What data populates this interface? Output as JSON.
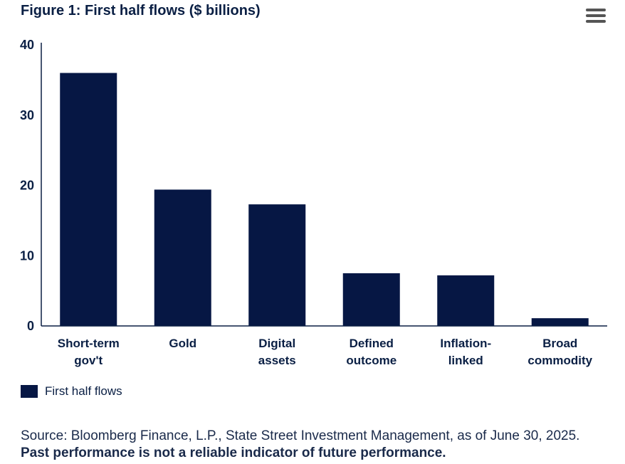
{
  "title": "Figure 1: First half flows ($ billions)",
  "menu_icon": "hamburger-menu-icon",
  "colors": {
    "bar": "#061744",
    "axis": "#0a1f44",
    "text": "#0a1f44"
  },
  "legend": {
    "label": "First half flows"
  },
  "source": {
    "text": "Source: Bloomberg Finance, L.P., State Street Investment Management, as of June 30, 2025. ",
    "bold": "Past performance is not a reliable indicator of future performance."
  },
  "chart_data": {
    "type": "bar",
    "categories": [
      [
        "Short-term",
        "gov't"
      ],
      [
        "Gold"
      ],
      [
        "Digital",
        "assets"
      ],
      [
        "Defined",
        "outcome"
      ],
      [
        "Inflation-",
        "linked"
      ],
      [
        "Broad",
        "commodity"
      ]
    ],
    "series": [
      {
        "name": "First half flows",
        "values": [
          36,
          19.4,
          17.3,
          7.5,
          7.2,
          1.1
        ]
      }
    ],
    "ylim": [
      0,
      40
    ],
    "yticks": [
      0,
      10,
      20,
      30,
      40
    ],
    "xlabel": "",
    "ylabel": "",
    "grid": false,
    "legend_position": "bottom-left"
  }
}
